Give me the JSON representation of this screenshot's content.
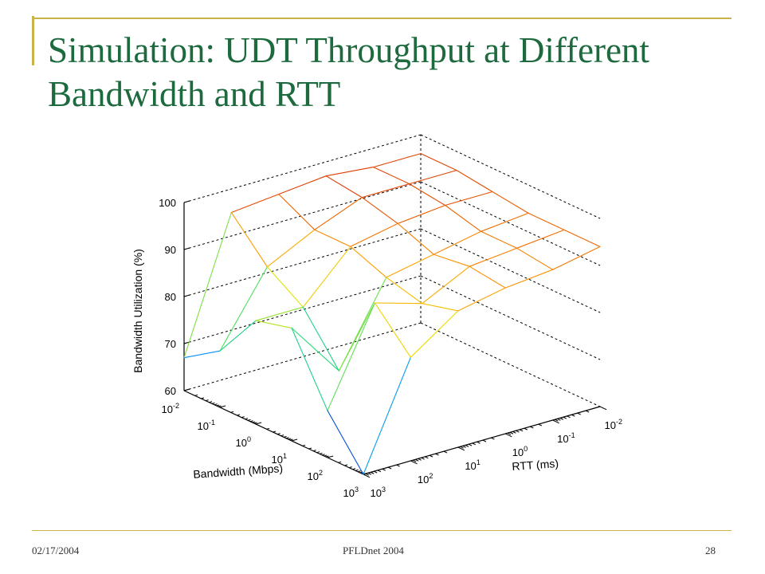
{
  "slide": {
    "title": "Simulation: UDT Throughput at Different Bandwidth and RTT",
    "footer_date": "02/17/2004",
    "footer_conference": "PFLDnet 2004",
    "footer_page": "28"
  },
  "colors": {
    "title": "#1d6a3e",
    "accent": "#c9b24a"
  },
  "chart_data": {
    "type": "surface",
    "title": "",
    "zlabel": "Bandwidth Utilization (%)",
    "xlabel": "Bandwidth (Mbps)",
    "ylabel": "RTT (ms)",
    "zlim": [
      60,
      100
    ],
    "z_ticks": [
      "100",
      "90",
      "80",
      "70",
      "60"
    ],
    "bandwidth_ticks": [
      {
        "base": "10",
        "exp": "-2"
      },
      {
        "base": "10",
        "exp": "-1"
      },
      {
        "base": "10",
        "exp": "0"
      },
      {
        "base": "10",
        "exp": "1"
      },
      {
        "base": "10",
        "exp": "2"
      },
      {
        "base": "10",
        "exp": "3"
      }
    ],
    "rtt_ticks": [
      {
        "base": "10",
        "exp": "3"
      },
      {
        "base": "10",
        "exp": "2"
      },
      {
        "base": "10",
        "exp": "1"
      },
      {
        "base": "10",
        "exp": "0"
      },
      {
        "base": "10",
        "exp": "-1"
      },
      {
        "base": "10",
        "exp": "-2"
      }
    ],
    "bandwidth_values": [
      0.01,
      0.1,
      1,
      10,
      100,
      1000
    ],
    "rtt_values": [
      1000,
      100,
      10,
      1,
      0.1,
      0.01
    ],
    "utilization_grid": [
      [
        67,
        95,
        96,
        97,
        96,
        96
      ],
      [
        72,
        87,
        92,
        96,
        96,
        96
      ],
      [
        82,
        82,
        92,
        94,
        95,
        95
      ],
      [
        84,
        72,
        89,
        91,
        93,
        94
      ],
      [
        70,
        90,
        87,
        92,
        93,
        94
      ],
      [
        60,
        82,
        89,
        91,
        92,
        94
      ]
    ],
    "grid": true,
    "grid_style": "dashed"
  }
}
